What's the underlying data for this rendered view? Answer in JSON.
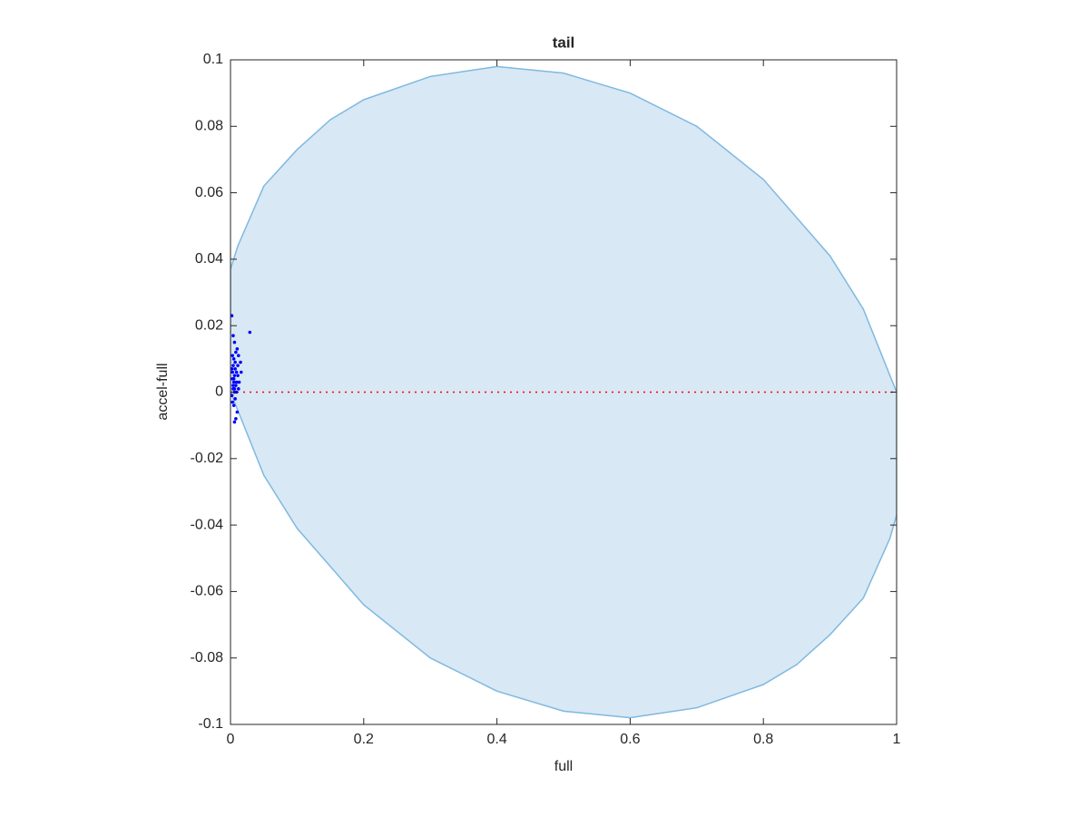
{
  "chart_data": {
    "type": "scatter",
    "title": "tail",
    "x_label": "full",
    "y_label": "accel-full",
    "xlim": [
      0,
      1
    ],
    "ylim": [
      -0.1,
      0.1
    ],
    "xticks": [
      0,
      0.2,
      0.4,
      0.6,
      0.8,
      1
    ],
    "yticks": [
      -0.1,
      -0.08,
      -0.06,
      -0.04,
      -0.02,
      0,
      0.02,
      0.04,
      0.06,
      0.08,
      0.1
    ],
    "series": [
      {
        "type": "area",
        "color": "#7fb9e0",
        "fill": "#d8e8f4",
        "x": [
          0,
          0.011,
          0.05,
          0.1,
          0.15,
          0.2,
          0.3,
          0.4,
          0.5,
          0.6,
          0.7,
          0.8,
          0.9,
          0.95,
          1,
          1,
          0.99,
          0.95,
          0.9,
          0.85,
          0.8,
          0.7,
          0.6,
          0.5,
          0.4,
          0.3,
          0.2,
          0.1,
          0.05,
          0
        ],
        "values": [
          0.037,
          0.044,
          0.062,
          0.073,
          0.082,
          0.088,
          0.095,
          0.098,
          0.096,
          0.09,
          0.08,
          0.064,
          0.041,
          0.025,
          0,
          -0.037,
          -0.044,
          -0.062,
          -0.073,
          -0.082,
          -0.088,
          -0.095,
          -0.098,
          -0.096,
          -0.09,
          -0.08,
          -0.064,
          -0.041,
          -0.025,
          0
        ]
      },
      {
        "type": "line",
        "color": "#ff0000",
        "dashed": true,
        "x": [
          0,
          1
        ],
        "values": [
          0,
          0
        ]
      },
      {
        "type": "scatter",
        "color": "#0000ff",
        "x": [
          0.002,
          0.004,
          0.006,
          0.003,
          0.008,
          0.005,
          0.01,
          0.012,
          0.007,
          0.004,
          0.002,
          0.015,
          0.009,
          0.006,
          0.003,
          0.011,
          0.005,
          0.008,
          0.004,
          0.013,
          0.006,
          0.002,
          0.009,
          0.007,
          0.003,
          0.016,
          0.005,
          0.01,
          0.004,
          0.008,
          0.006,
          0.012,
          0.003,
          0.029,
          0.005,
          0.007,
          0.009,
          0.002,
          0.011,
          0.006
        ],
        "values": [
          0.023,
          0.017,
          0.015,
          0.011,
          0.012,
          0.01,
          0.013,
          0.011,
          0.009,
          0.008,
          0.007,
          0.009,
          0.006,
          0.005,
          0.004,
          0.005,
          0.003,
          0.002,
          0.001,
          0.003,
          0.0,
          -0.001,
          0.0,
          -0.002,
          -0.003,
          0.006,
          -0.004,
          -0.006,
          0.002,
          -0.008,
          -0.009,
          0.001,
          0.006,
          0.018,
          0.004,
          0.007,
          0.003,
          -0.001,
          0.008,
          0.001
        ]
      }
    ]
  }
}
